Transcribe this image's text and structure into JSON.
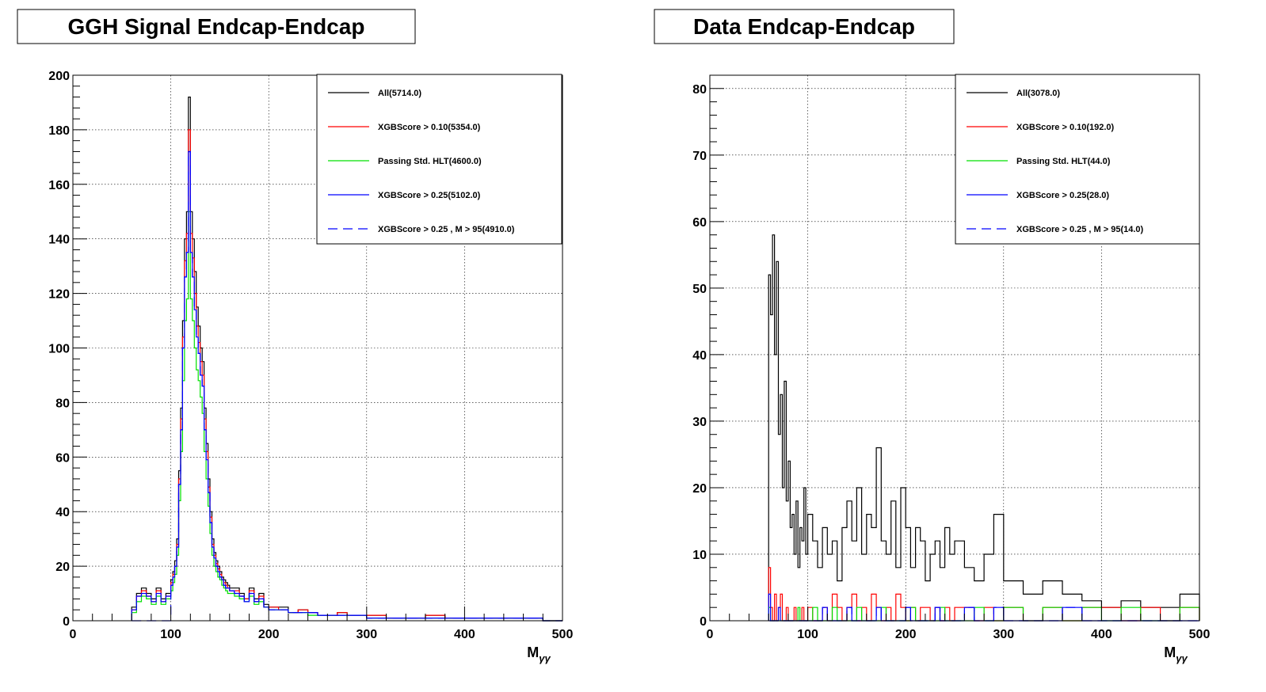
{
  "chart_data": [
    {
      "type": "histogram",
      "title": "GGH Signal Endcap-Endcap",
      "xlabel": "M",
      "xlabel_sub": "γγ",
      "xlim": [
        0,
        500
      ],
      "ylim": [
        0,
        200
      ],
      "x_ticks": [
        0,
        100,
        200,
        300,
        400,
        500
      ],
      "y_ticks": [
        0,
        20,
        40,
        60,
        80,
        100,
        120,
        140,
        160,
        180,
        200
      ],
      "grid": true,
      "legend_position": "top-right",
      "bin_edges": [
        60,
        65,
        70,
        75,
        80,
        85,
        90,
        95,
        100,
        102,
        104,
        106,
        108,
        110,
        112,
        114,
        116,
        118,
        120,
        122,
        124,
        126,
        128,
        130,
        132,
        134,
        136,
        138,
        140,
        142,
        144,
        146,
        148,
        150,
        152,
        154,
        156,
        158,
        160,
        165,
        170,
        175,
        180,
        185,
        190,
        195,
        200,
        210,
        220,
        230,
        240,
        250,
        260,
        270,
        280,
        300,
        320,
        340,
        360,
        380,
        400,
        420,
        440,
        460,
        480,
        500
      ],
      "series": [
        {
          "name": "All(5714.0)",
          "color": "#000000",
          "dash": "",
          "values": [
            5,
            10,
            12,
            10,
            8,
            12,
            8,
            10,
            15,
            18,
            22,
            30,
            55,
            78,
            110,
            140,
            150,
            192,
            150,
            140,
            128,
            115,
            108,
            100,
            95,
            78,
            65,
            52,
            40,
            30,
            25,
            22,
            20,
            18,
            16,
            15,
            14,
            13,
            12,
            12,
            10,
            8,
            12,
            8,
            10,
            6,
            5,
            5,
            3,
            4,
            3,
            2,
            2,
            3,
            2,
            2,
            1,
            1,
            2,
            1,
            1,
            1,
            1,
            1,
            0
          ]
        },
        {
          "name": "XGBScore > 0.10(5354.0)",
          "color": "#ff0000",
          "dash": "",
          "values": [
            4,
            9,
            11,
            9,
            7,
            11,
            7,
            9,
            14,
            17,
            20,
            28,
            52,
            74,
            104,
            132,
            142,
            180,
            142,
            133,
            120,
            108,
            102,
            95,
            90,
            74,
            62,
            49,
            38,
            28,
            24,
            21,
            19,
            17,
            15,
            14,
            13,
            12,
            11,
            11,
            9,
            8,
            11,
            7,
            9,
            5,
            5,
            4,
            3,
            4,
            3,
            2,
            2,
            3,
            2,
            2,
            1,
            1,
            2,
            1,
            1,
            1,
            1,
            1,
            0
          ]
        },
        {
          "name": "Passing Std. HLT(4600.0)",
          "color": "#00e000",
          "dash": "",
          "values": [
            3,
            7,
            9,
            8,
            6,
            9,
            6,
            8,
            11,
            14,
            17,
            24,
            44,
            62,
            88,
            110,
            118,
            150,
            118,
            110,
            100,
            92,
            88,
            82,
            76,
            62,
            52,
            42,
            32,
            24,
            20,
            18,
            16,
            15,
            13,
            12,
            11,
            10,
            10,
            9,
            8,
            7,
            9,
            6,
            7,
            5,
            4,
            4,
            3,
            3,
            2,
            2,
            2,
            2,
            2,
            1,
            1,
            1,
            1,
            1,
            1,
            1,
            1,
            1,
            0
          ]
        },
        {
          "name": "XGBScore > 0.25(5102.0)",
          "color": "#0000ff",
          "dash": "",
          "values": [
            4,
            9,
            10,
            9,
            7,
            10,
            7,
            9,
            13,
            16,
            20,
            27,
            50,
            70,
            100,
            126,
            135,
            172,
            135,
            126,
            114,
            104,
            98,
            90,
            86,
            70,
            59,
            47,
            36,
            27,
            23,
            20,
            18,
            16,
            15,
            13,
            12,
            12,
            11,
            10,
            9,
            7,
            10,
            7,
            8,
            5,
            4,
            4,
            3,
            3,
            3,
            2,
            2,
            2,
            2,
            1,
            1,
            1,
            1,
            1,
            1,
            1,
            1,
            1,
            0
          ]
        },
        {
          "name": "XGBScore > 0.25 , M > 95(4910.0)",
          "color": "#0000ff",
          "dash": "12 7",
          "values": [
            0,
            0,
            0,
            0,
            0,
            0,
            0,
            0,
            13,
            16,
            20,
            27,
            50,
            70,
            100,
            126,
            135,
            172,
            135,
            126,
            114,
            104,
            98,
            90,
            86,
            70,
            59,
            47,
            36,
            27,
            23,
            20,
            18,
            16,
            15,
            13,
            12,
            12,
            11,
            10,
            9,
            7,
            10,
            7,
            8,
            5,
            4,
            4,
            3,
            3,
            3,
            2,
            2,
            2,
            2,
            1,
            1,
            1,
            1,
            1,
            1,
            1,
            1,
            1,
            0
          ]
        }
      ]
    },
    {
      "type": "histogram",
      "title": "Data Endcap-Endcap",
      "xlabel": "M",
      "xlabel_sub": "γγ",
      "xlim": [
        0,
        500
      ],
      "ylim": [
        0,
        82
      ],
      "x_ticks": [
        0,
        100,
        200,
        300,
        400,
        500
      ],
      "y_ticks": [
        0,
        10,
        20,
        30,
        40,
        50,
        60,
        70,
        80
      ],
      "grid": true,
      "legend_position": "top-right",
      "bin_edges": [
        60,
        62,
        64,
        66,
        68,
        70,
        72,
        74,
        76,
        78,
        80,
        82,
        84,
        86,
        88,
        90,
        92,
        94,
        96,
        98,
        100,
        105,
        110,
        115,
        120,
        125,
        130,
        135,
        140,
        145,
        150,
        155,
        160,
        165,
        170,
        175,
        180,
        185,
        190,
        195,
        200,
        205,
        210,
        215,
        220,
        225,
        230,
        235,
        240,
        245,
        250,
        260,
        270,
        280,
        290,
        300,
        320,
        340,
        360,
        380,
        400,
        420,
        440,
        460,
        480,
        500
      ],
      "series": [
        {
          "name": "All(3078.0)",
          "color": "#000000",
          "dash": "",
          "values": [
            52,
            46,
            58,
            40,
            54,
            28,
            34,
            20,
            36,
            18,
            24,
            14,
            16,
            10,
            18,
            8,
            14,
            12,
            20,
            10,
            16,
            12,
            8,
            14,
            10,
            12,
            6,
            14,
            18,
            12,
            20,
            10,
            16,
            14,
            26,
            12,
            10,
            18,
            8,
            20,
            14,
            8,
            14,
            12,
            6,
            10,
            12,
            8,
            14,
            10,
            12,
            8,
            6,
            10,
            16,
            6,
            4,
            6,
            4,
            3,
            2,
            3,
            2,
            2,
            4
          ]
        },
        {
          "name": "XGBScore > 0.10(192.0)",
          "color": "#ff0000",
          "dash": "",
          "values": [
            8,
            2,
            0,
            4,
            0,
            2,
            4,
            0,
            0,
            2,
            0,
            0,
            0,
            2,
            0,
            0,
            0,
            2,
            0,
            0,
            2,
            0,
            0,
            2,
            0,
            4,
            2,
            0,
            2,
            4,
            0,
            2,
            0,
            4,
            2,
            0,
            2,
            0,
            4,
            2,
            0,
            2,
            0,
            2,
            2,
            0,
            2,
            0,
            2,
            0,
            2,
            2,
            0,
            2,
            0,
            2,
            0,
            2,
            0,
            2,
            2,
            0,
            2,
            0,
            2
          ]
        },
        {
          "name": "Passing Std. HLT(44.0)",
          "color": "#00e000",
          "dash": "",
          "values": [
            2,
            0,
            0,
            0,
            0,
            0,
            0,
            0,
            0,
            0,
            0,
            0,
            0,
            0,
            0,
            2,
            0,
            0,
            0,
            0,
            0,
            2,
            0,
            0,
            0,
            2,
            0,
            0,
            0,
            0,
            2,
            0,
            0,
            0,
            0,
            2,
            0,
            0,
            0,
            0,
            0,
            2,
            0,
            0,
            0,
            0,
            0,
            2,
            0,
            0,
            0,
            0,
            2,
            0,
            0,
            2,
            0,
            2,
            0,
            2,
            0,
            2,
            0,
            0,
            2
          ]
        },
        {
          "name": "XGBScore > 0.25(28.0)",
          "color": "#0000ff",
          "dash": "",
          "values": [
            4,
            0,
            0,
            0,
            0,
            2,
            0,
            0,
            0,
            0,
            0,
            0,
            0,
            0,
            0,
            0,
            0,
            0,
            0,
            0,
            0,
            0,
            0,
            2,
            0,
            0,
            0,
            0,
            2,
            0,
            0,
            0,
            0,
            0,
            2,
            0,
            0,
            0,
            0,
            0,
            2,
            0,
            0,
            0,
            0,
            0,
            2,
            0,
            0,
            0,
            0,
            2,
            0,
            0,
            2,
            0,
            0,
            0,
            2,
            0,
            0,
            0,
            0,
            0,
            0
          ]
        },
        {
          "name": "XGBScore > 0.25 , M > 95(14.0)",
          "color": "#0000ff",
          "dash": "12 7",
          "values": [
            0,
            0,
            0,
            0,
            0,
            0,
            0,
            0,
            0,
            0,
            0,
            0,
            0,
            0,
            0,
            0,
            0,
            0,
            0,
            0,
            0,
            0,
            0,
            2,
            0,
            0,
            0,
            0,
            2,
            0,
            0,
            0,
            0,
            0,
            2,
            0,
            0,
            0,
            0,
            0,
            2,
            0,
            0,
            0,
            0,
            0,
            2,
            0,
            0,
            0,
            0,
            2,
            0,
            0,
            2,
            0,
            0,
            0,
            2,
            0,
            0,
            0,
            0,
            0,
            0
          ]
        }
      ]
    }
  ]
}
